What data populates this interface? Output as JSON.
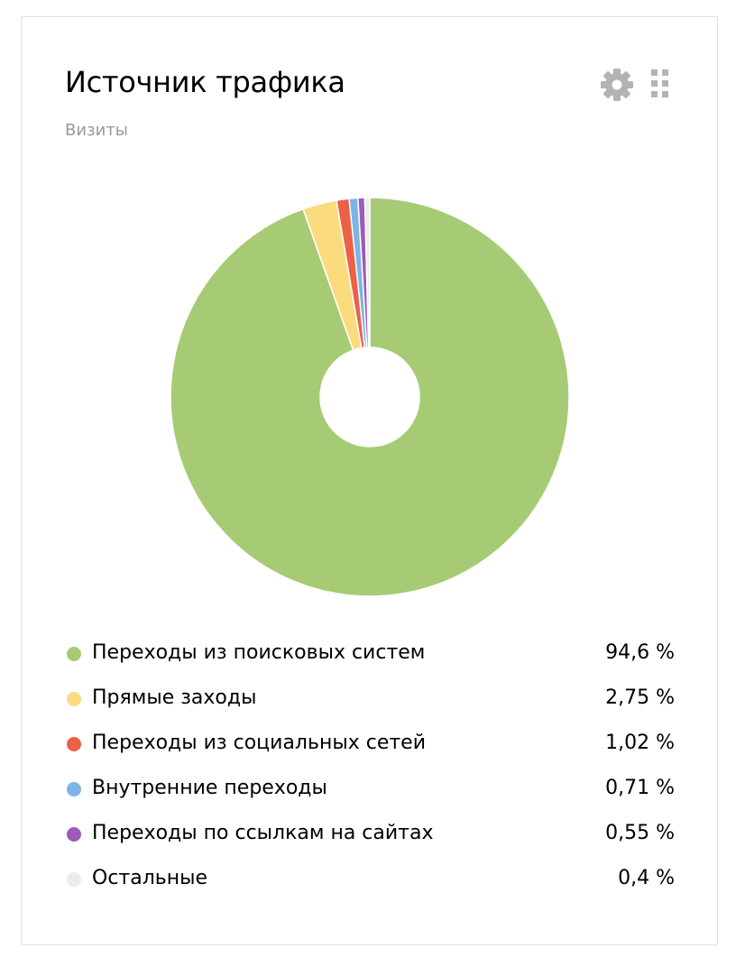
{
  "widget": {
    "title": "Источник трафика",
    "subtitle": "Визиты",
    "settings_icon": "gear-icon",
    "drag_icon": "grip-icon"
  },
  "chart_data": {
    "type": "pie",
    "donut": true,
    "title": "Источник трафика",
    "subtitle": "Визиты",
    "unit": "%",
    "categories": [
      "Переходы из поисковых систем",
      "Прямые заходы",
      "Переходы из социальных сетей",
      "Внутренние переходы",
      "Переходы по ссылкам на сайтах",
      "Остальные"
    ],
    "values": [
      94.6,
      2.75,
      1.02,
      0.71,
      0.55,
      0.4
    ],
    "value_labels": [
      "94,6 %",
      "2,75 %",
      "1,02 %",
      "0,71 %",
      "0,55 %",
      "0,4 %"
    ],
    "colors": [
      "#a6cb74",
      "#fadb7e",
      "#eb6147",
      "#7cb5e6",
      "#9e5ab8",
      "#ececec"
    ],
    "legend_position": "bottom"
  }
}
